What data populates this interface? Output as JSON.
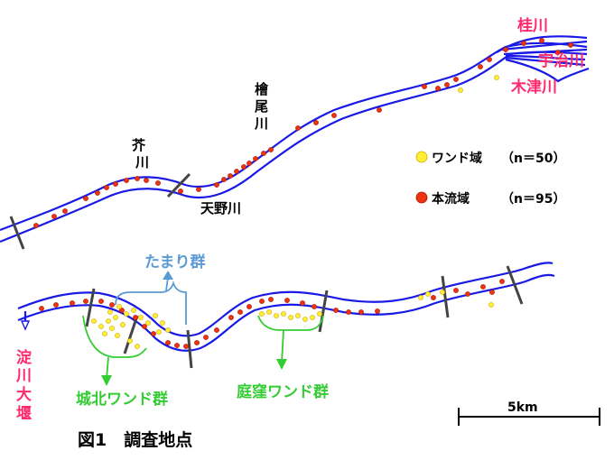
{
  "map": {
    "rivers": {
      "katsura": "桂川",
      "uji": "宇治川",
      "kizu": "木津川",
      "hinoki_o_1": "檜",
      "hinoki_o_2": "尾",
      "hinoki_o_3": "川",
      "akuta_1": "芥",
      "akuta_2": "川",
      "amano": "天野川",
      "yodo_weir": [
        "淀",
        "川",
        "大",
        "堰"
      ]
    },
    "legend": {
      "wando_label": "ワンド域",
      "wando_count": "（n＝50）",
      "main_label": "本流域",
      "main_count": "（n＝95）"
    },
    "groups": {
      "tamari": "たまり群",
      "shirokita": "城北ワンド群",
      "niwakubo": "庭窪ワンド群"
    },
    "scale_bar": "5km",
    "caption": "図1　調査地点",
    "colors": {
      "river": "#1a1ae6",
      "wando_fill": "#ffee33",
      "wando_stroke": "#d4a800",
      "main_fill": "#ee3311",
      "main_stroke": "#aa1100",
      "river_label": "#ff2a6d",
      "group_tamari": "#5b9bd5",
      "group_green": "#33cc33"
    }
  }
}
